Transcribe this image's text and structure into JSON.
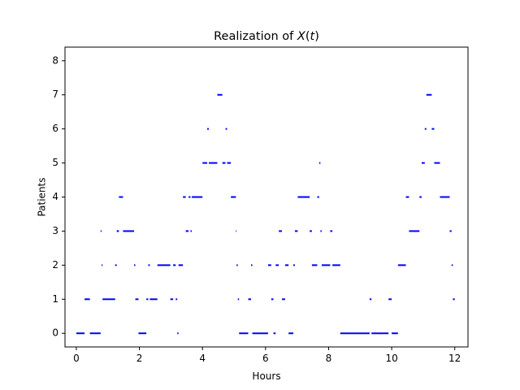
{
  "chart_data": {
    "type": "step",
    "title": "Realization of X(t)",
    "title_parts": {
      "prefix": "Realization of ",
      "italic": "X",
      "suffix": "(t)"
    },
    "xlabel": "Hours",
    "ylabel": "Patients",
    "xlim": [
      -0.36,
      12.42
    ],
    "ylim": [
      -0.4,
      8.4
    ],
    "xticks": [
      0,
      2,
      4,
      6,
      8,
      10,
      12
    ],
    "yticks": [
      0,
      1,
      2,
      3,
      4,
      5,
      6,
      7,
      8
    ],
    "grid": false,
    "legend": "none",
    "line_color": "#0000ff",
    "series": [
      {
        "segments": [
          [
            0.0,
            0.26,
            0
          ],
          [
            0.26,
            0.43,
            1
          ],
          [
            0.43,
            0.77,
            0
          ],
          [
            0.77,
            0.8,
            3
          ],
          [
            0.8,
            0.83,
            2
          ],
          [
            0.83,
            1.23,
            1
          ],
          [
            1.23,
            1.28,
            2
          ],
          [
            1.28,
            1.35,
            3
          ],
          [
            1.35,
            1.48,
            4
          ],
          [
            1.48,
            1.83,
            3
          ],
          [
            1.83,
            1.87,
            2
          ],
          [
            1.87,
            1.97,
            1
          ],
          [
            1.97,
            2.22,
            0
          ],
          [
            2.22,
            2.28,
            1
          ],
          [
            2.28,
            2.33,
            2
          ],
          [
            2.33,
            2.57,
            1
          ],
          [
            2.57,
            2.98,
            2
          ],
          [
            2.98,
            3.07,
            1
          ],
          [
            3.07,
            3.15,
            2
          ],
          [
            3.15,
            3.2,
            1
          ],
          [
            3.2,
            3.24,
            0
          ],
          [
            3.24,
            3.38,
            2
          ],
          [
            3.38,
            3.47,
            4
          ],
          [
            3.47,
            3.56,
            3
          ],
          [
            3.56,
            3.62,
            4
          ],
          [
            3.62,
            3.66,
            3
          ],
          [
            3.66,
            4.0,
            4
          ],
          [
            4.0,
            4.15,
            5
          ],
          [
            4.15,
            4.2,
            6
          ],
          [
            4.2,
            4.47,
            5
          ],
          [
            4.47,
            4.63,
            7
          ],
          [
            4.63,
            4.73,
            5
          ],
          [
            4.73,
            4.78,
            6
          ],
          [
            4.78,
            4.9,
            5
          ],
          [
            4.9,
            5.06,
            4
          ],
          [
            5.06,
            5.08,
            3
          ],
          [
            5.08,
            5.12,
            2
          ],
          [
            5.12,
            5.16,
            1
          ],
          [
            5.16,
            5.45,
            0
          ],
          [
            5.45,
            5.54,
            1
          ],
          [
            5.54,
            5.58,
            2
          ],
          [
            5.58,
            6.08,
            0
          ],
          [
            6.08,
            6.18,
            2
          ],
          [
            6.18,
            6.25,
            1
          ],
          [
            6.25,
            6.32,
            0
          ],
          [
            6.32,
            6.42,
            2
          ],
          [
            6.42,
            6.52,
            3
          ],
          [
            6.52,
            6.62,
            1
          ],
          [
            6.62,
            6.73,
            2
          ],
          [
            6.73,
            6.88,
            0
          ],
          [
            6.88,
            6.93,
            2
          ],
          [
            6.93,
            7.02,
            3
          ],
          [
            7.02,
            7.4,
            4
          ],
          [
            7.4,
            7.47,
            3
          ],
          [
            7.47,
            7.64,
            2
          ],
          [
            7.64,
            7.7,
            4
          ],
          [
            7.7,
            7.74,
            5
          ],
          [
            7.74,
            7.78,
            3
          ],
          [
            7.78,
            8.05,
            2
          ],
          [
            8.05,
            8.12,
            3
          ],
          [
            8.12,
            8.37,
            2
          ],
          [
            8.37,
            9.3,
            0
          ],
          [
            9.3,
            9.36,
            1
          ],
          [
            9.36,
            9.9,
            0
          ],
          [
            9.9,
            10.0,
            1
          ],
          [
            10.0,
            10.2,
            0
          ],
          [
            10.2,
            10.45,
            2
          ],
          [
            10.45,
            10.55,
            4
          ],
          [
            10.55,
            10.88,
            3
          ],
          [
            10.88,
            10.95,
            4
          ],
          [
            10.95,
            11.05,
            5
          ],
          [
            11.05,
            11.1,
            6
          ],
          [
            11.1,
            11.27,
            7
          ],
          [
            11.27,
            11.35,
            6
          ],
          [
            11.35,
            11.53,
            5
          ],
          [
            11.53,
            11.62,
            4
          ],
          [
            11.62,
            11.84,
            4
          ],
          [
            11.84,
            11.9,
            3
          ],
          [
            11.9,
            11.94,
            2
          ],
          [
            11.94,
            12.0,
            1
          ]
        ]
      }
    ]
  }
}
